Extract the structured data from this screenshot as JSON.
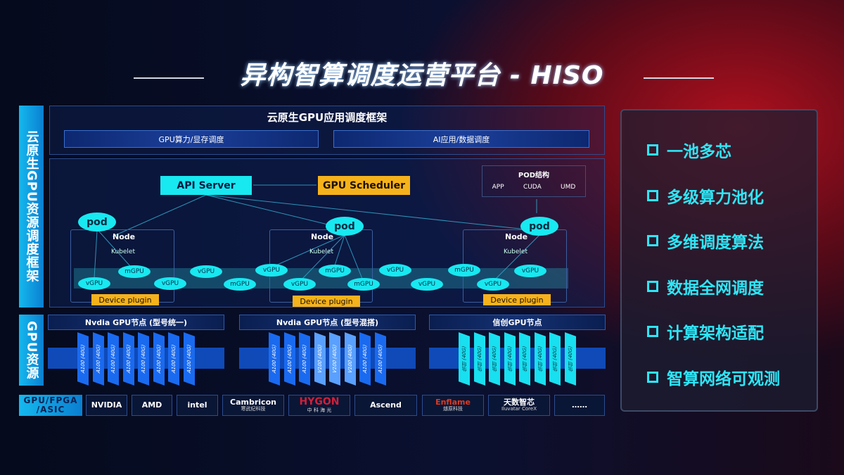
{
  "title": "异构智算调度运营平台 - HISO",
  "left_labels": {
    "scheduling": "云原生GPU资源调度框架",
    "resources": "GPU资源",
    "chips": "GPU/FPGA /ASIC"
  },
  "framework": {
    "title": "云原生GPU应用调度框架",
    "sub": [
      "GPU算力/显存调度",
      "AI应用/数据调度"
    ]
  },
  "api_server": "API Server",
  "gpu_scheduler": "GPU Scheduler",
  "pod_struct": {
    "title": "POD结构",
    "parts": [
      "APP",
      "CUDA",
      "UMD"
    ]
  },
  "node_label": "Node",
  "kubelet": "Kubelet",
  "pod": "pod",
  "device_plugin": "Device plugin",
  "gpus": [
    "vGPU",
    "mGPU",
    "vGPU",
    "vGPU",
    "mGPU",
    "vGPU",
    "vGPU",
    "mGPU",
    "mGPU",
    "vGPU",
    "vGPU",
    "mGPU",
    "vGPU",
    "vGPU"
  ],
  "gpu_nodes": [
    {
      "title": "Nvdia GPU节点 (型号统一)",
      "cards": [
        "A100 (40G)",
        "A100 (40G)",
        "A100 (40G)",
        "A100 (40G)",
        "A100 (40G)",
        "A100 (40G)",
        "A100 (40G)",
        "A100 (40G)"
      ],
      "color": "#1a6af0"
    },
    {
      "title": "Nvdia GPU节点 (型号混搭)",
      "cards": [
        "A100 (40G)",
        "A100 (40G)",
        "A100 (40G)",
        "V100 (40G)",
        "V100 (40G)",
        "V100 (40G)",
        "A100 (40G)",
        "A100 (40G)"
      ],
      "color": "#1a6af0",
      "alt_color": "#5aa0ff"
    },
    {
      "title": "信创GPU节点",
      "cards": [
        "信创 (40G)",
        "信创 (40G)",
        "信创 (40G)",
        "信创 (40G)",
        "信创 (40G)",
        "信创 (40G)",
        "信创 (40G)",
        "信创 (40G)"
      ],
      "color": "#18e0f0"
    }
  ],
  "vendors": [
    {
      "name": "NVIDIA"
    },
    {
      "name": "AMD"
    },
    {
      "name": "intel"
    },
    {
      "name": "Cambricon",
      "sub": "寒武纪科技"
    },
    {
      "name": "HYGON",
      "sub": "中 科 海 光"
    },
    {
      "name": "Ascend"
    },
    {
      "name": "Enflame",
      "sub": "燧原科技"
    },
    {
      "name": "天数智芯",
      "sub": "Iluvatar CoreX"
    },
    {
      "name": "……"
    }
  ],
  "features": [
    "一池多芯",
    "多级算力池化",
    "多维调度算法",
    "数据全网调度",
    "计算架构适配",
    "智算网络可观测"
  ]
}
